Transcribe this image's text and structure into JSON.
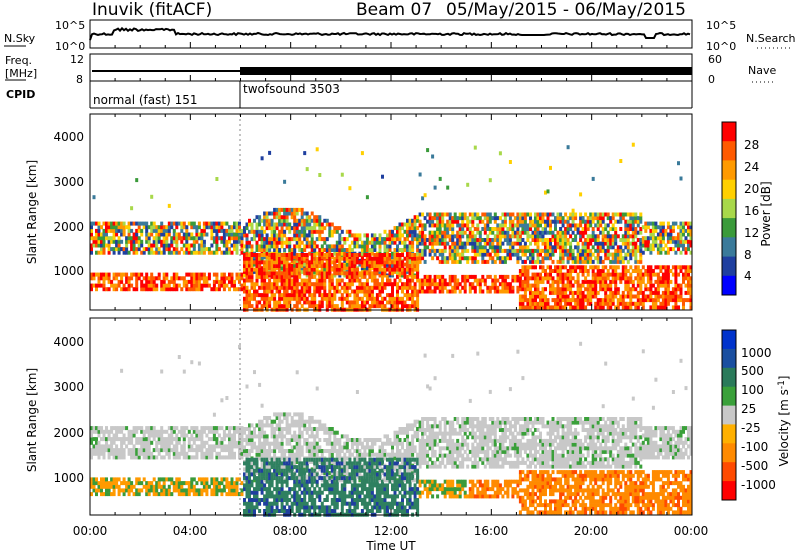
{
  "header": {
    "station": "Inuvik (fitACF)",
    "beam": "Beam 07",
    "dates": "05/May/2015 - 06/May/2015"
  },
  "colors": {
    "frame": "#000000",
    "sky_noise": "#000000",
    "clutter_power": "#ff2a00",
    "clutter_velocity": "#c8c8c8"
  },
  "chart_data": [
    {
      "type": "line",
      "panel": "noise",
      "left_label": "N.Sky",
      "right_label": "N.Search",
      "left_ticks": [
        "10^5",
        "10^0"
      ],
      "right_ticks": [
        "10^5",
        "10^0"
      ],
      "x_range_hours": [
        0,
        24
      ]
    },
    {
      "type": "line",
      "panel": "frequency-nave",
      "left_label_line1": "Freq.",
      "left_label_line2": "[MHz]",
      "right_label": "Nave",
      "left_ticks": [
        "12",
        "8"
      ],
      "right_ticks": [
        "60",
        "0"
      ],
      "cpid_label": "CPID",
      "modes": [
        {
          "name": "normal (fast) 151",
          "start_hour": 0,
          "end_hour": 6
        },
        {
          "name": "twofsound 3503",
          "start_hour": 6,
          "end_hour": 24
        }
      ]
    },
    {
      "type": "heatmap",
      "panel": "power",
      "ylabel": "Slant Range [km]",
      "ylim": [
        200,
        4500
      ],
      "yticks": [
        "4000",
        "3000",
        "2000",
        "1000"
      ],
      "colorbar_label": "Power [dB]",
      "colorbar_ticks": [
        "28",
        "24",
        "20",
        "16",
        "12",
        "8",
        "4"
      ],
      "colorbar_colors": [
        "#ff0000",
        "#ff5a00",
        "#ff9a00",
        "#ffd000",
        "#a8d84a",
        "#3a9a3a",
        "#3a7a9a",
        "#1f3f9f",
        "#0000ff"
      ]
    },
    {
      "type": "heatmap",
      "panel": "velocity",
      "ylabel": "Slant Range [km]",
      "ylim": [
        200,
        4500
      ],
      "yticks": [
        "4000",
        "3000",
        "2000",
        "1000"
      ],
      "colorbar_label": "Velocity [m s^-1]",
      "colorbar_ticks": [
        "1000",
        "500",
        "100",
        "25",
        "-25",
        "-100",
        "-500",
        "-1000"
      ],
      "colorbar_colors": [
        "#0033cc",
        "#1a4fa0",
        "#2a7a5a",
        "#3aa03a",
        "#c8c8c8",
        "#ffb000",
        "#ff8a00",
        "#ff4a00",
        "#ff0000"
      ],
      "xticks": [
        "00:00",
        "04:00",
        "08:00",
        "12:00",
        "16:00",
        "20:00",
        "00:00"
      ],
      "xlabel": "Time UT"
    }
  ]
}
